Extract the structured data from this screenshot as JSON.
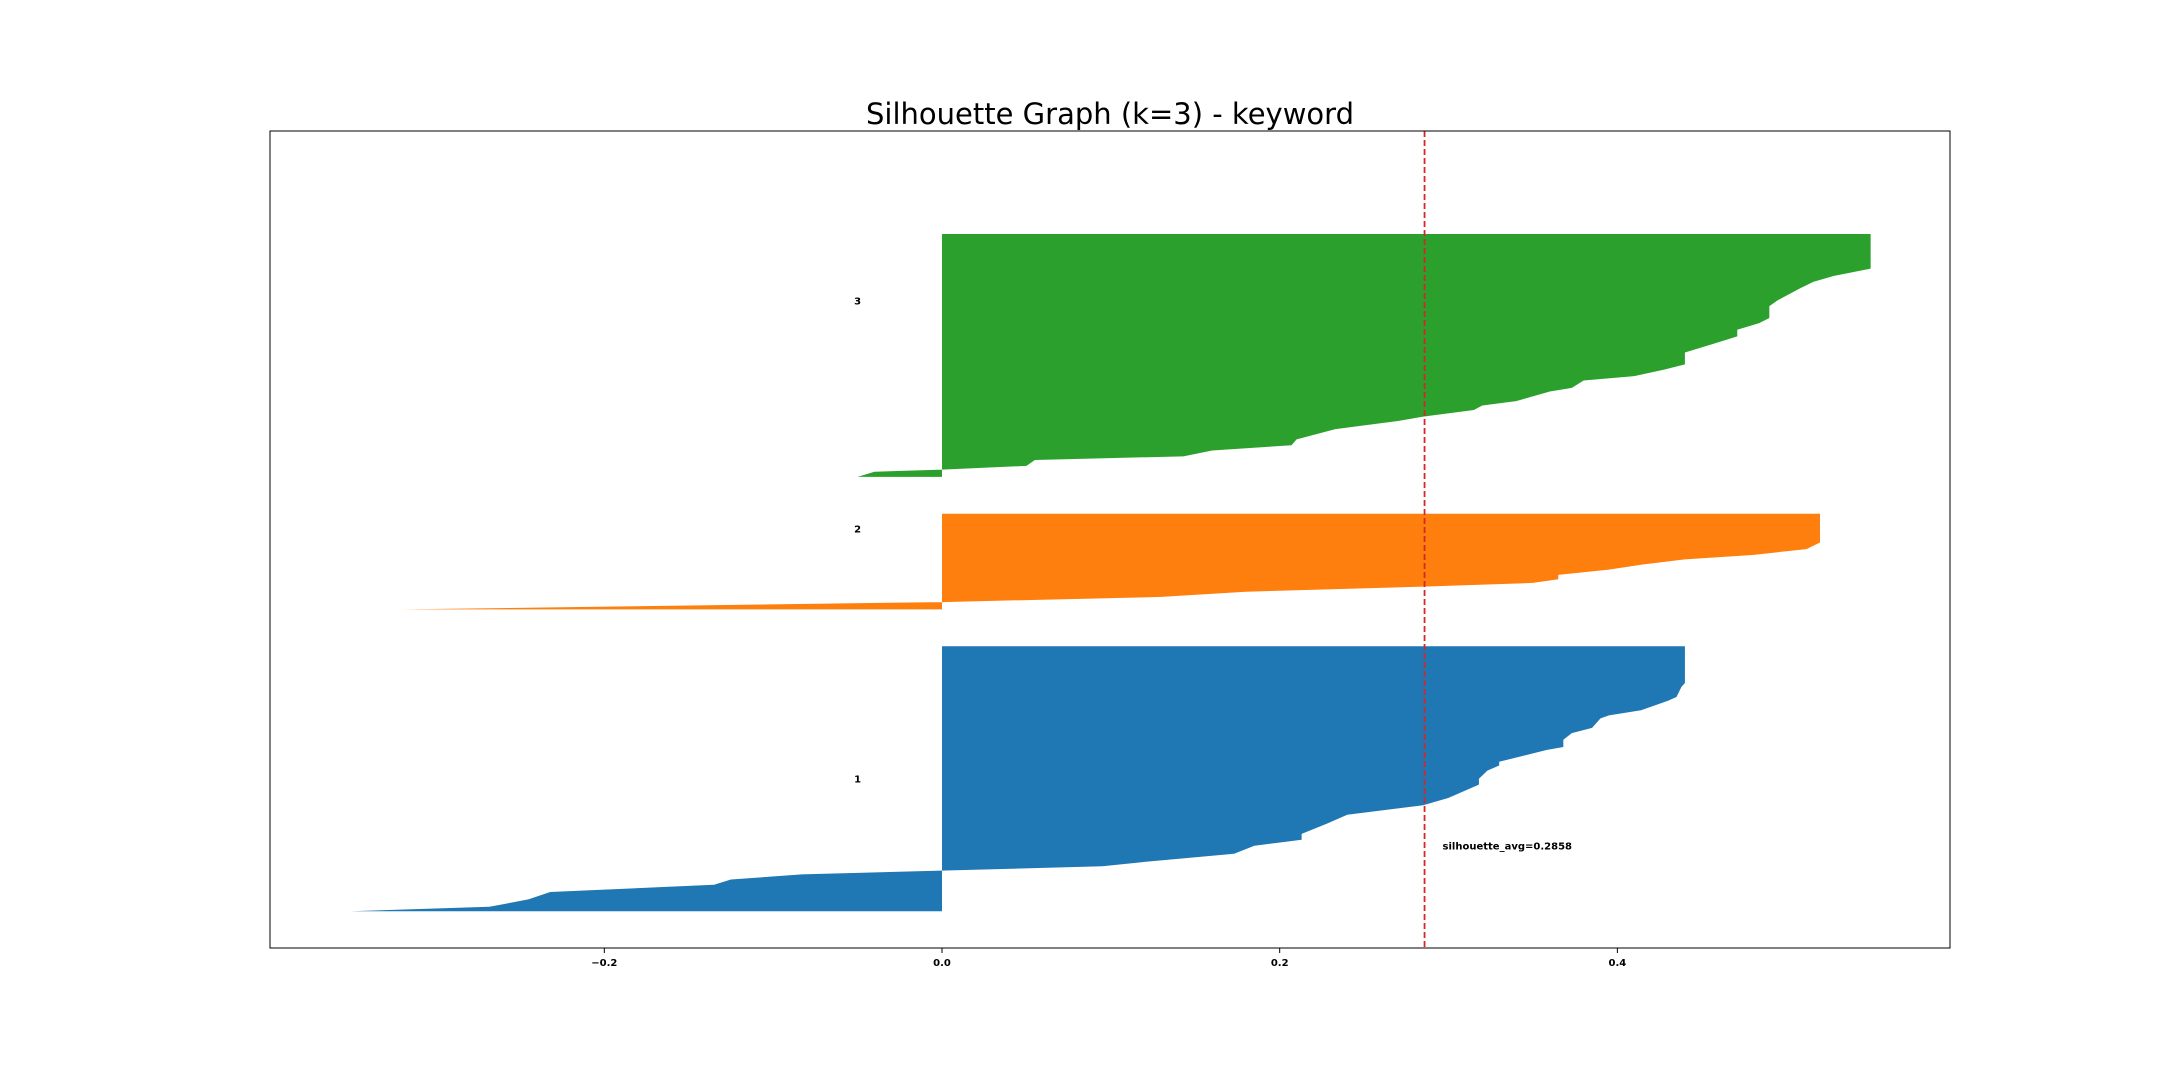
{
  "chart_data": {
    "type": "area",
    "title": "Silhouette Graph (k=3) - keyword",
    "xlabel": "",
    "ylabel": "",
    "xlim": [
      -0.398,
      0.597
    ],
    "ylim": [
      0,
      111
    ],
    "x_ticks": [
      {
        "value": -0.2,
        "label": "−0.2"
      },
      {
        "value": 0.0,
        "label": "0.0"
      },
      {
        "value": 0.2,
        "label": "0.2"
      },
      {
        "value": 0.4,
        "label": "0.4"
      }
    ],
    "y_ticks_visible": false,
    "grid": false,
    "legend": "none",
    "average_line": {
      "value": 0.2858,
      "color": "#d62728",
      "style": "dashed",
      "label": "silhouette_avg=0.2858",
      "label_y": 13.9
    },
    "series": [
      {
        "name": "1",
        "color": "#1f77b4",
        "y_lower": 5,
        "y_upper": 41,
        "label_y": 23,
        "description_points_bottom_to_top": [
          [
            -0.35,
            5
          ],
          [
            -0.268,
            5.6
          ],
          [
            -0.245,
            6.6
          ],
          [
            -0.232,
            7.6
          ],
          [
            -0.135,
            8.6
          ],
          [
            -0.125,
            9.3
          ],
          [
            -0.083,
            10.0
          ],
          [
            0.095,
            11.1
          ],
          [
            0.12,
            11.7
          ],
          [
            0.173,
            12.8
          ],
          [
            0.185,
            13.9
          ],
          [
            0.213,
            14.7
          ],
          [
            0.213,
            15.5
          ],
          [
            0.228,
            16.9
          ],
          [
            0.24,
            18.1
          ],
          [
            0.285,
            19.4
          ],
          [
            0.3,
            20.4
          ],
          [
            0.31,
            21.4
          ],
          [
            0.318,
            22.2
          ],
          [
            0.318,
            23.0
          ],
          [
            0.323,
            24.1
          ],
          [
            0.33,
            24.8
          ],
          [
            0.33,
            25.3
          ],
          [
            0.358,
            26.9
          ],
          [
            0.368,
            27.3
          ],
          [
            0.368,
            28.3
          ],
          [
            0.373,
            29.2
          ],
          [
            0.385,
            29.9
          ],
          [
            0.39,
            31.2
          ],
          [
            0.395,
            31.6
          ],
          [
            0.414,
            32.3
          ],
          [
            0.43,
            33.6
          ],
          [
            0.435,
            34.1
          ],
          [
            0.438,
            35.5
          ],
          [
            0.44,
            36.0
          ],
          [
            0.44,
            41
          ]
        ]
      },
      {
        "name": "2",
        "color": "#ff7f0e",
        "y_lower": 46,
        "y_upper": 59,
        "label_y": 57,
        "description_points_bottom_to_top": [
          [
            -0.32,
            46
          ],
          [
            -0.225,
            46.3
          ],
          [
            0.0,
            47.0
          ],
          [
            0.13,
            47.7
          ],
          [
            0.18,
            48.4
          ],
          [
            0.285,
            49.1
          ],
          [
            0.35,
            49.6
          ],
          [
            0.365,
            50.1
          ],
          [
            0.365,
            50.7
          ],
          [
            0.395,
            51.4
          ],
          [
            0.415,
            52.1
          ],
          [
            0.44,
            52.8
          ],
          [
            0.48,
            53.4
          ],
          [
            0.512,
            54.2
          ],
          [
            0.52,
            55.1
          ],
          [
            0.52,
            59
          ]
        ]
      },
      {
        "name": "3",
        "color": "#2ca02c",
        "y_lower": 64,
        "y_upper": 97,
        "label_y": 88,
        "description_points_bottom_to_top": [
          [
            -0.05,
            64
          ],
          [
            -0.04,
            64.7
          ],
          [
            0.0,
            65.0
          ],
          [
            0.05,
            65.5
          ],
          [
            0.055,
            66.3
          ],
          [
            0.143,
            66.8
          ],
          [
            0.16,
            67.6
          ],
          [
            0.207,
            68.3
          ],
          [
            0.21,
            69.1
          ],
          [
            0.233,
            70.5
          ],
          [
            0.27,
            71.6
          ],
          [
            0.285,
            72.2
          ],
          [
            0.315,
            73.1
          ],
          [
            0.32,
            73.7
          ],
          [
            0.34,
            74.3
          ],
          [
            0.36,
            75.6
          ],
          [
            0.373,
            76.1
          ],
          [
            0.38,
            77.1
          ],
          [
            0.41,
            77.7
          ],
          [
            0.428,
            78.6
          ],
          [
            0.44,
            79.3
          ],
          [
            0.44,
            80.9
          ],
          [
            0.457,
            82.1
          ],
          [
            0.471,
            83.1
          ],
          [
            0.471,
            84.0
          ],
          [
            0.484,
            84.9
          ],
          [
            0.49,
            85.6
          ],
          [
            0.49,
            87.2
          ],
          [
            0.495,
            88.0
          ],
          [
            0.508,
            89.6
          ],
          [
            0.516,
            90.5
          ],
          [
            0.528,
            91.3
          ],
          [
            0.55,
            92.3
          ],
          [
            0.55,
            97
          ]
        ]
      }
    ]
  }
}
